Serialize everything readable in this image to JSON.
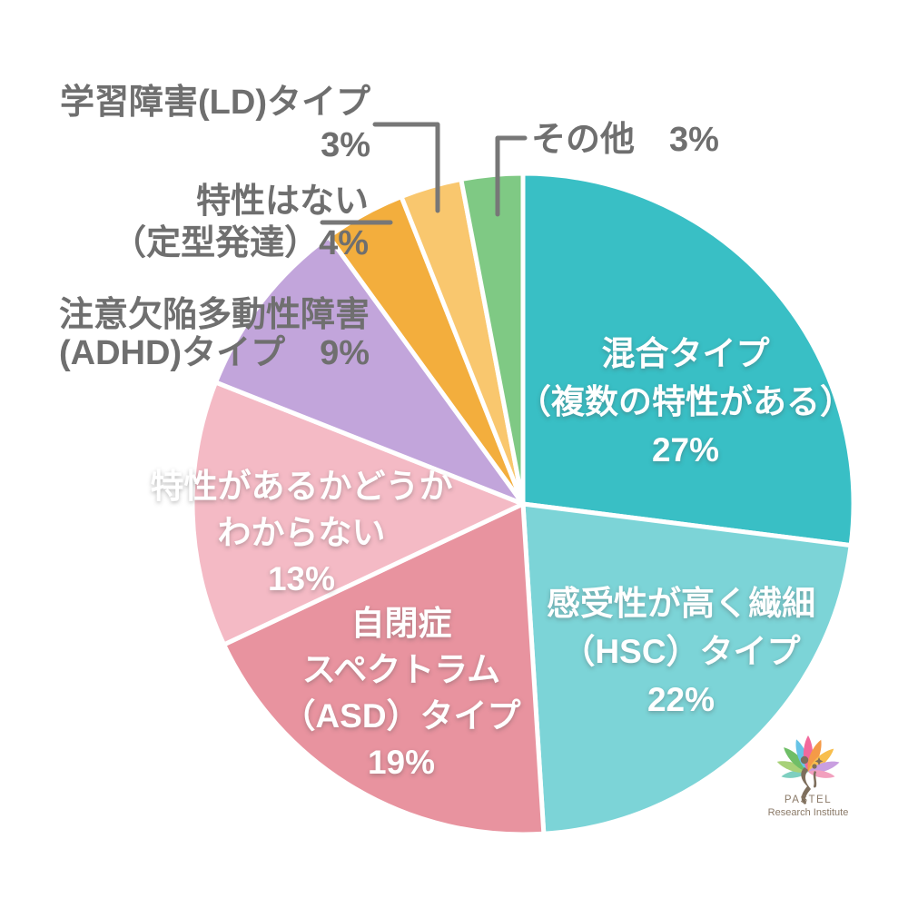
{
  "page": {
    "background": "#FFFFFF"
  },
  "chart_data": {
    "type": "pie",
    "title": "",
    "units": "%",
    "start_angle_deg": 0,
    "direction": "clockwise",
    "legend_position": "none",
    "label_text_color_inside": "#FFFFFF",
    "label_text_color_outside": "#6F6F6F",
    "leader_line_color": "#777777",
    "slice_gap_color": "#FFFFFF",
    "slices": [
      {
        "label": "混合タイプ（複数の特性がある）",
        "value": 27,
        "pct_label": "27%",
        "color": "#39BFC5",
        "label_style": "inside-white",
        "text_lines": [
          "混合タイプ",
          "（複数の特性がある）",
          "27%"
        ]
      },
      {
        "label": "感受性が高く繊細（HSC）タイプ",
        "value": 22,
        "pct_label": "22%",
        "color": "#7CD4D7",
        "label_style": "inside-white",
        "text_lines": [
          "感受性が高く繊細",
          "（HSC）タイプ",
          "22%"
        ]
      },
      {
        "label": "自閉症スペクトラム（ASD）タイプ",
        "value": 19,
        "pct_label": "19%",
        "color": "#E8939F",
        "label_style": "inside-white",
        "text_lines": [
          "自閉症",
          "スペクトラム",
          "（ASD）タイプ",
          "19%"
        ]
      },
      {
        "label": "特性があるかどうかわからない",
        "value": 13,
        "pct_label": "13%",
        "color": "#F4BAC5",
        "label_style": "inside-white",
        "text_lines": [
          "特性があるかどうか",
          "わからない",
          "13%"
        ]
      },
      {
        "label": "注意欠陥多動性障害(ADHD)タイプ",
        "value": 9,
        "pct_label": "9%",
        "color": "#C2A5DB",
        "label_style": "outside-gray",
        "text_lines": [
          "注意欠陥多動性障害",
          "(ADHD)タイプ　9%"
        ]
      },
      {
        "label": "特性はない（定型発達）",
        "value": 4,
        "pct_label": "4%",
        "color": "#F3AE3D",
        "label_style": "outside-gray",
        "text_lines": [
          "特性はない",
          "（定型発達）4%"
        ]
      },
      {
        "label": "学習障害(LD)タイプ",
        "value": 3,
        "pct_label": "3%",
        "color": "#F9C76E",
        "label_style": "outside-gray",
        "text_lines": [
          "学習障害(LD)タイプ",
          "3%"
        ]
      },
      {
        "label": "その他",
        "value": 3,
        "pct_label": "3%",
        "color": "#7FC984",
        "label_style": "outside-gray",
        "text_lines": [
          "その他　3%"
        ]
      }
    ]
  },
  "logo": {
    "line1": "PASTEL",
    "line2": "Research Institute",
    "text_color": "#8B7A68",
    "figure_color": "#7D6E5C",
    "petal_colors": [
      "#7ECFC0",
      "#A8D178",
      "#6FBE67",
      "#67C3E6",
      "#F2699C",
      "#F59A47",
      "#F8BE4D",
      "#C99FE0",
      "#F2A0BE"
    ]
  }
}
